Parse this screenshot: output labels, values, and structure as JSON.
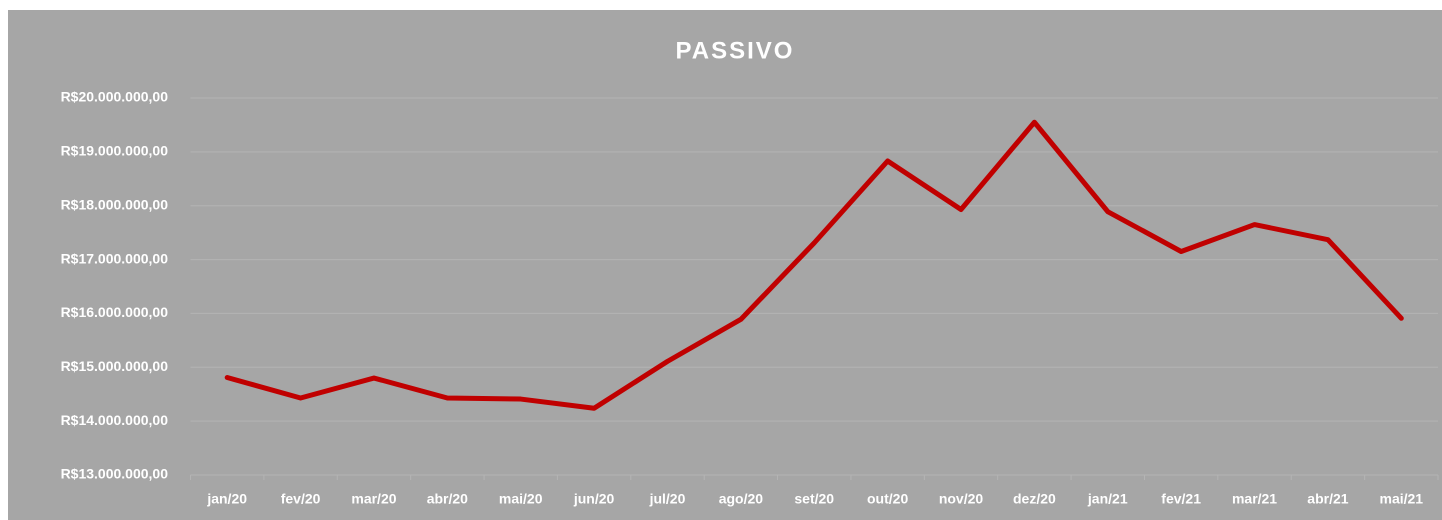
{
  "chart_data": {
    "type": "line",
    "title": "PASSIVO",
    "categories": [
      "jan/20",
      "fev/20",
      "mar/20",
      "abr/20",
      "mai/20",
      "jun/20",
      "jul/20",
      "ago/20",
      "set/20",
      "out/20",
      "nov/20",
      "dez/20",
      "jan/21",
      "fev/21",
      "mar/21",
      "abr/21",
      "mai/21"
    ],
    "series": [
      {
        "name": "PASSIVO",
        "color": "#c00000",
        "values": [
          14810000,
          14430000,
          14800000,
          14430000,
          14410000,
          14240000,
          15110000,
          15890000,
          17310000,
          18830000,
          17930000,
          19550000,
          17890000,
          17150000,
          17650000,
          17370000,
          15910000
        ]
      }
    ],
    "ylim": [
      13000000,
      20000000
    ],
    "yticks": [
      {
        "value": 13000000,
        "label": "R$13.000.000,00"
      },
      {
        "value": 14000000,
        "label": "R$14.000.000,00"
      },
      {
        "value": 15000000,
        "label": "R$15.000.000,00"
      },
      {
        "value": 16000000,
        "label": "R$16.000.000,00"
      },
      {
        "value": 17000000,
        "label": "R$17.000.000,00"
      },
      {
        "value": 18000000,
        "label": "R$18.000.000,00"
      },
      {
        "value": 19000000,
        "label": "R$19.000.000,00"
      },
      {
        "value": 20000000,
        "label": "R$20.000.000,00"
      }
    ],
    "grid": true
  }
}
